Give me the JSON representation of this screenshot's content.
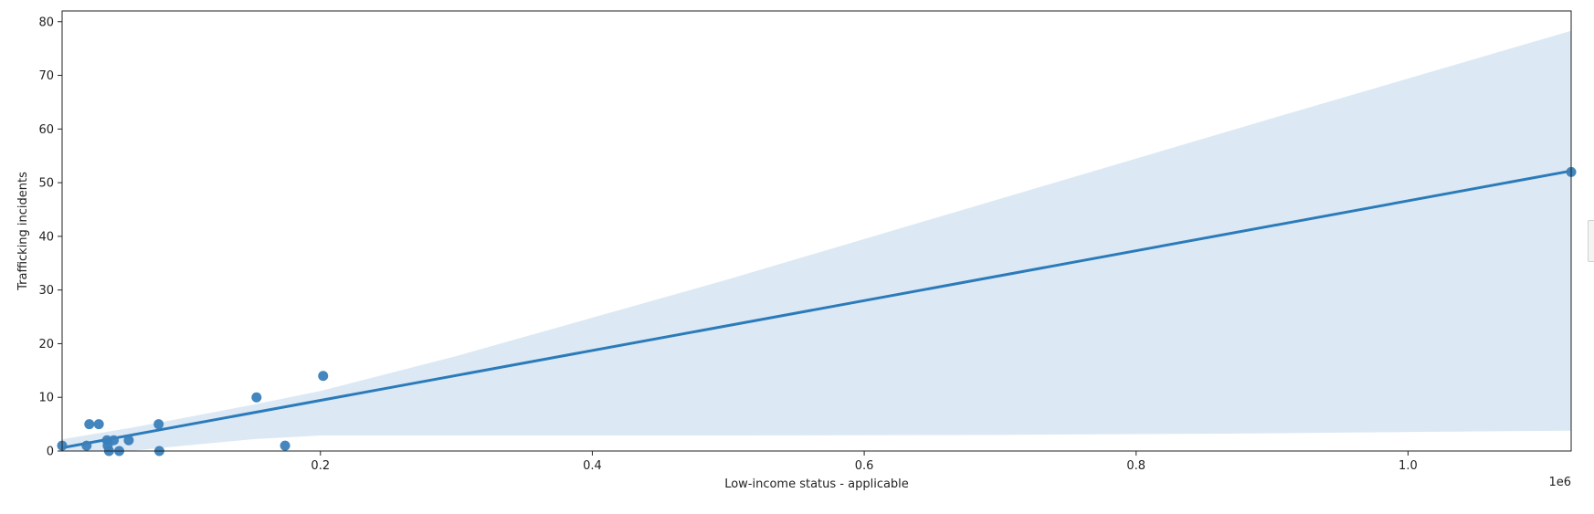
{
  "chart_data": {
    "type": "scatter",
    "title": "",
    "xlabel": "Low-income status - applicable",
    "ylabel": "Trafficking incidents",
    "x_offset_label": "1e6",
    "xlim": [
      10000,
      1120000
    ],
    "ylim": [
      0,
      82
    ],
    "x_ticks": [
      0.2,
      0.4,
      0.6,
      0.8,
      1.0
    ],
    "x_tick_labels": [
      "0.2",
      "0.4",
      "0.6",
      "0.8",
      "1.0"
    ],
    "y_ticks": [
      0,
      10,
      20,
      30,
      40,
      50,
      60,
      70,
      80
    ],
    "y_tick_labels": [
      "0",
      "10",
      "20",
      "30",
      "40",
      "50",
      "60",
      "70",
      "80"
    ],
    "grid": false,
    "legend": "none",
    "colors": {
      "points": "#3a7fba",
      "line": "#2b7bba",
      "band": "#dce9f4"
    },
    "points": [
      {
        "x": 10000,
        "y": 1
      },
      {
        "x": 28000,
        "y": 1
      },
      {
        "x": 30000,
        "y": 5
      },
      {
        "x": 37000,
        "y": 5
      },
      {
        "x": 43000,
        "y": 2
      },
      {
        "x": 43500,
        "y": 1
      },
      {
        "x": 44500,
        "y": 0
      },
      {
        "x": 48000,
        "y": 2
      },
      {
        "x": 52000,
        "y": 0
      },
      {
        "x": 59000,
        "y": 2
      },
      {
        "x": 81000,
        "y": 5
      },
      {
        "x": 81500,
        "y": 0
      },
      {
        "x": 153000,
        "y": 10
      },
      {
        "x": 174000,
        "y": 1
      },
      {
        "x": 202000,
        "y": 14
      },
      {
        "x": 1120000,
        "y": 52
      }
    ],
    "regression_line": [
      {
        "x": 10000,
        "y": 0.6
      },
      {
        "x": 1120000,
        "y": 52.2
      }
    ],
    "confidence_band": {
      "x": [
        10000,
        60000,
        100000,
        150000,
        200000,
        300000,
        500000,
        700000,
        900000,
        1120000
      ],
      "upper": [
        2.2,
        4.3,
        6.2,
        8.6,
        11.2,
        17.7,
        32.0,
        47.0,
        62.0,
        78.3
      ],
      "lower": [
        0,
        0,
        1.0,
        2.2,
        2.9,
        2.9,
        2.9,
        3.0,
        3.3,
        3.8
      ]
    }
  }
}
